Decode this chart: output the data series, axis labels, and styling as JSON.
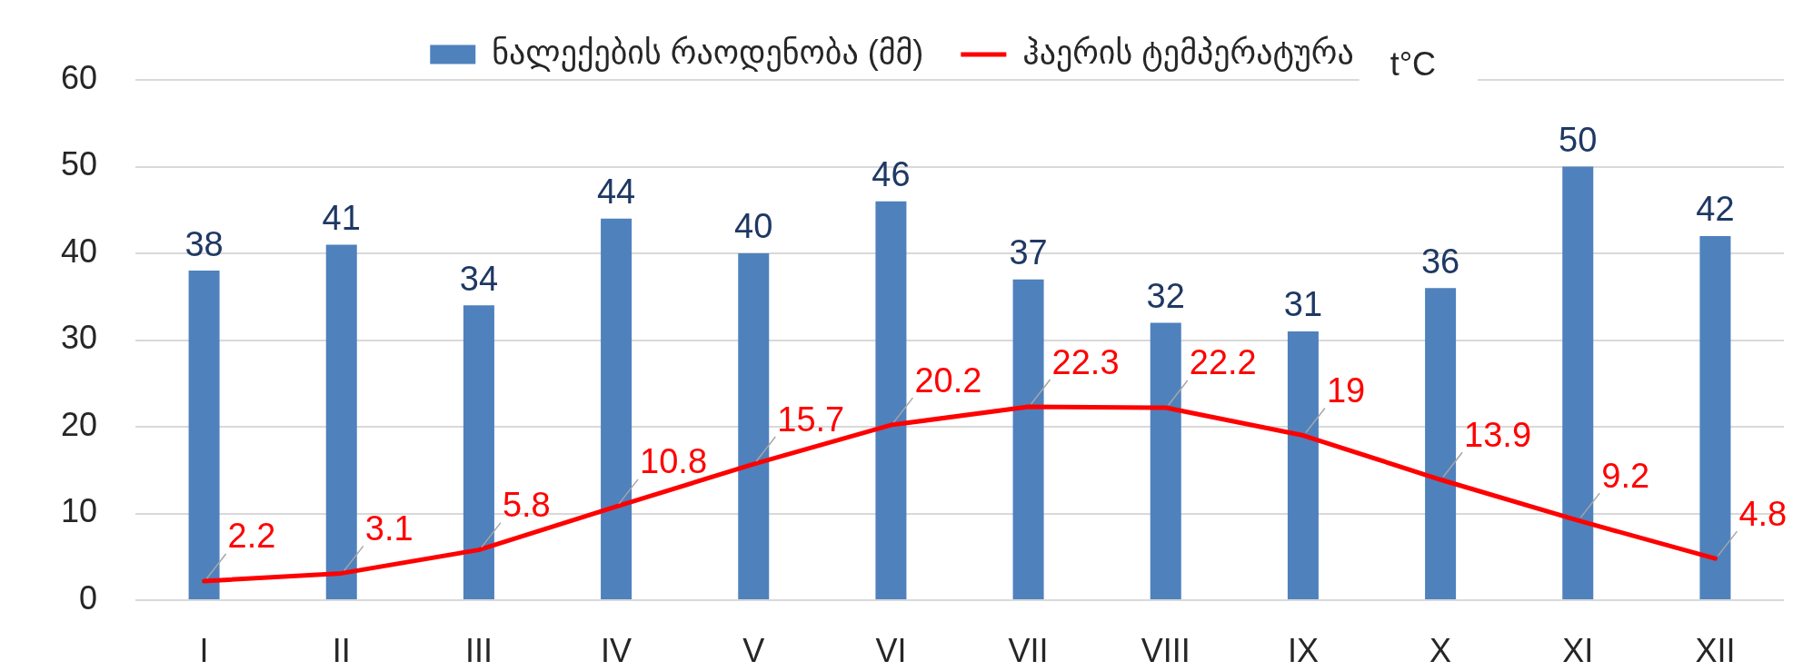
{
  "chart_data": {
    "type": "bar",
    "categories": [
      "I",
      "II",
      "III",
      "IV",
      "V",
      "VI",
      "VII",
      "VIII",
      "IX",
      "X",
      "XI",
      "XII"
    ],
    "series": [
      {
        "name": "ნალექების რაოდენობა (მმ)",
        "type": "bar",
        "color": "#4f81bd",
        "values": [
          38,
          41,
          34,
          44,
          40,
          46,
          37,
          32,
          31,
          36,
          50,
          42
        ]
      },
      {
        "name": "ჰაერის ტემპერატურა",
        "type": "line",
        "color": "#ff0000",
        "values": [
          2.2,
          3.1,
          5.8,
          10.8,
          15.7,
          20.2,
          22.3,
          22.2,
          19,
          13.9,
          9.2,
          4.8
        ]
      }
    ],
    "ylim": [
      0,
      60
    ],
    "yticks": [
      0,
      10,
      20,
      30,
      40,
      50,
      60
    ],
    "grid": "y",
    "legend": "top",
    "data_labels": true,
    "marker": "none",
    "line_style": "solid",
    "annotations": [
      "t°C"
    ]
  }
}
